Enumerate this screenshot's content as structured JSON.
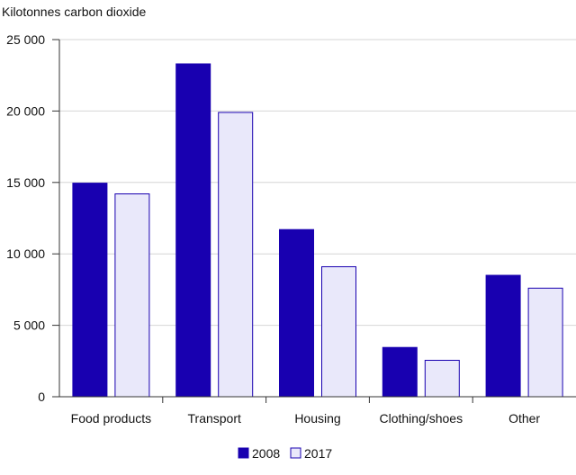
{
  "chart_data": {
    "type": "bar",
    "title": "",
    "ylabel": "Kilotonnes carbon dioxide",
    "xlabel": "",
    "categories": [
      "Food products",
      "Transport",
      "Housing",
      "Clothing/shoes",
      "Other"
    ],
    "series": [
      {
        "name": "2008",
        "values": [
          14950,
          23300,
          11700,
          3450,
          8500
        ],
        "color": "#1800b0"
      },
      {
        "name": "2017",
        "values": [
          14200,
          19900,
          9100,
          2550,
          7600
        ],
        "color": "#e9e8fa"
      }
    ],
    "ylim": [
      0,
      25000
    ],
    "yticks": [
      0,
      5000,
      10000,
      15000,
      20000,
      25000
    ],
    "ytick_labels": [
      "0",
      "5 000",
      "10 000",
      "15 000",
      "20 000",
      "25 000"
    ],
    "grid": true,
    "legend_position": "bottom"
  }
}
